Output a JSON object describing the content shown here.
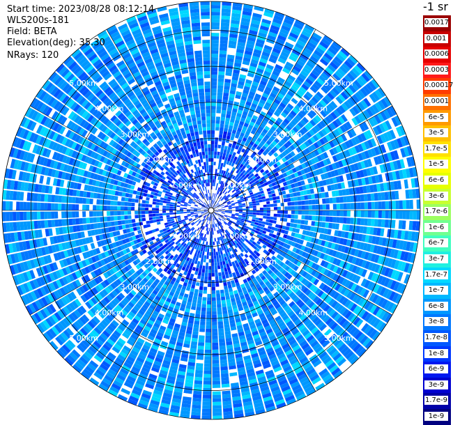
{
  "header": {
    "start_time": "Start time: 2023/08/28 08:12:14",
    "instrument": "WLS200s-181",
    "field": "Field: BETA",
    "elevation": "Elevation(deg): 35.30",
    "nrays": "NRays: 120"
  },
  "colorbar": {
    "units": "-1 sr",
    "labels": [
      "0.0017",
      "0.001",
      "0.0006",
      "0.0003",
      "0.00017",
      "0.0001",
      "6e-5",
      "3e-5",
      "1.7e-5",
      "1e-5",
      "6e-6",
      "3e-6",
      "1.7e-6",
      "1e-6",
      "6e-7",
      "3e-7",
      "1.7e-7",
      "1e-7",
      "6e-8",
      "3e-8",
      "1.7e-8",
      "1e-8",
      "6e-9",
      "3e-9",
      "1.7e-9",
      "1e-9"
    ],
    "colors": [
      "#9a0000",
      "#c80000",
      "#e60000",
      "#ff1a1a",
      "#ff3c00",
      "#ff7000",
      "#ff9a00",
      "#ffbf00",
      "#ffe000",
      "#ffff00",
      "#e6ff00",
      "#c8ff30",
      "#9cff60",
      "#70ff90",
      "#40ffc0",
      "#20f0e0",
      "#00d8ff",
      "#00b8ff",
      "#0098ff",
      "#0078ff",
      "#0058ff",
      "#0038ff",
      "#0018f0",
      "#0000d0",
      "#0000a8",
      "#000080"
    ]
  },
  "chart_data": {
    "type": "heatmap",
    "projection": "polar PPI",
    "range_rings_km": [
      1,
      2,
      3,
      4,
      5
    ],
    "ring_labels": [
      "1.00km",
      "2.00km",
      "3.00km",
      "4.00km",
      "5.00km"
    ],
    "nrays": 120,
    "max_range_km": 5.8,
    "dominant_values": "mostly 6e-8 to 1e-7 (light/medium blue) at long range, 1e-8 to 3e-8 (deep blue) near center"
  }
}
